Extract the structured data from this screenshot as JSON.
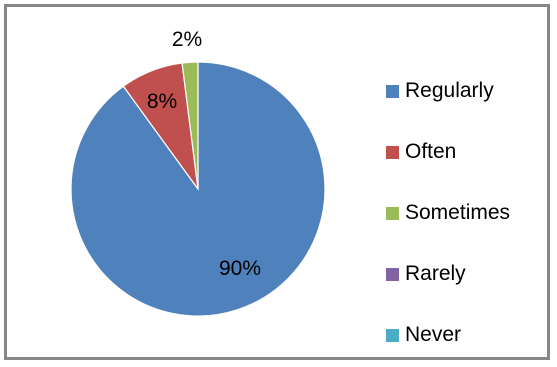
{
  "chart_data": {
    "type": "pie",
    "categories": [
      "Regularly",
      "Often",
      "Sometimes",
      "Rarely",
      "Never"
    ],
    "values": [
      90,
      8,
      2,
      0,
      0
    ],
    "data_labels": [
      "90%",
      "8%",
      "2%",
      "",
      ""
    ],
    "colors": [
      "#4F81BD",
      "#C0504D",
      "#9BBB59",
      "#8064A2",
      "#4BACC6"
    ],
    "legend": {
      "position": "right",
      "items": [
        {
          "label": "Regularly",
          "color": "#4F81BD"
        },
        {
          "label": "Often",
          "color": "#C0504D"
        },
        {
          "label": "Sometimes",
          "color": "#9BBB59"
        },
        {
          "label": "Rarely",
          "color": "#8064A2"
        },
        {
          "label": "Never",
          "color": "#4BACC6"
        }
      ]
    }
  }
}
